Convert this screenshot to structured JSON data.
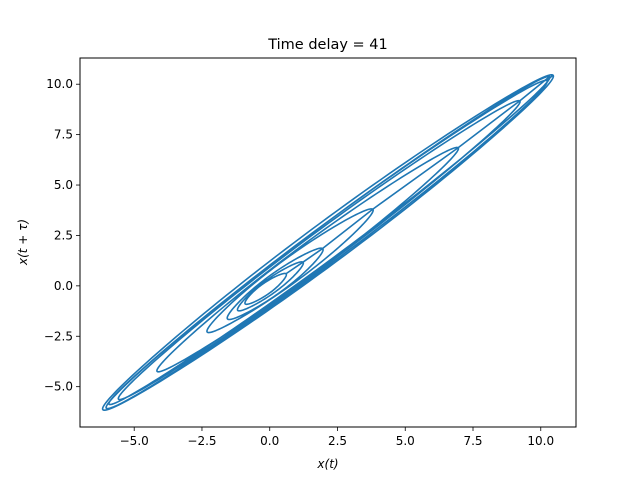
{
  "chart_data": {
    "type": "line",
    "title": "Time delay = 41",
    "xlabel": "x(t)",
    "ylabel": "x(t + τ)",
    "xlim": [
      -7.0,
      11.3
    ],
    "ylim": [
      -7.0,
      11.3
    ],
    "x_ticks": [
      -5.0,
      -2.5,
      0.0,
      2.5,
      5.0,
      7.5,
      10.0
    ],
    "y_ticks": [
      -5.0,
      -2.5,
      0.0,
      2.5,
      5.0,
      7.5,
      10.0
    ],
    "x_tick_labels": [
      "−5.0",
      "−2.5",
      "0.0",
      "2.5",
      "5.0",
      "7.5",
      "10.0"
    ],
    "y_tick_labels": [
      "−5.0",
      "−2.5",
      "0.0",
      "2.5",
      "5.0",
      "7.5",
      "10.0"
    ],
    "grid": false,
    "series": [
      {
        "color": "#1f77b4",
        "attractor": {
          "center": [
            2.15,
            2.15
          ],
          "loops": [
            {
              "max": 10.45,
              "min": -6.15,
              "offset": 0.0,
              "width": 1.25
            },
            {
              "max": 10.2,
              "min": -6.05,
              "offset": 0.05,
              "width": 1.1
            },
            {
              "max": 10.35,
              "min": -5.9,
              "offset": -0.05,
              "width": 1.0
            },
            {
              "max": 9.2,
              "min": -5.6,
              "offset": 0.05,
              "width": 1.0
            },
            {
              "max": 6.9,
              "min": -4.2,
              "offset": 0.1,
              "width": 0.9
            },
            {
              "max": 3.8,
              "min": -2.3,
              "offset": 0.0,
              "width": 0.75
            },
            {
              "max": 1.9,
              "min": -1.6,
              "offset": 0.1,
              "width": 0.6
            },
            {
              "max": 1.2,
              "min": -1.2,
              "offset": 0.05,
              "width": 0.45
            },
            {
              "max": 0.6,
              "min": -0.9,
              "offset": 0.0,
              "width": 0.35
            }
          ]
        }
      }
    ]
  }
}
